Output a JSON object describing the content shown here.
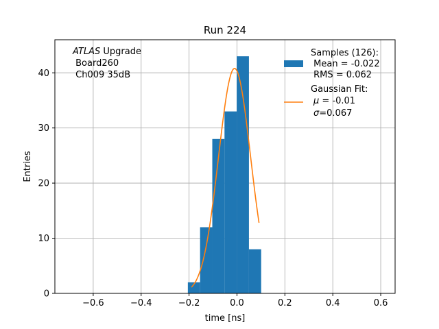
{
  "chart_data": {
    "type": "bar",
    "title": "Run 224",
    "xlabel": "time [ns]",
    "ylabel": "Entries",
    "xlim": [
      -0.76,
      0.66
    ],
    "ylim": [
      0,
      46
    ],
    "x_ticks": [
      -0.6,
      -0.4,
      -0.2,
      0.0,
      0.2,
      0.4,
      0.6
    ],
    "x_tick_labels": [
      "−0.6",
      "−0.4",
      "−0.2",
      "0.0",
      "0.2",
      "0.4",
      "0.6"
    ],
    "y_ticks": [
      0,
      10,
      20,
      30,
      40
    ],
    "y_tick_labels": [
      "0",
      "10",
      "20",
      "30",
      "40"
    ],
    "grid": true,
    "histogram": {
      "bin_edges": [
        -0.205,
        -0.154,
        -0.103,
        -0.052,
        -0.001,
        0.05,
        0.101
      ],
      "counts": [
        2,
        12,
        28,
        33,
        43,
        8
      ],
      "color": "#1f77b4"
    },
    "fit": {
      "type": "gaussian",
      "amplitude": 40.8,
      "mu": -0.01,
      "sigma": 0.067,
      "x_range": [
        -0.19,
        0.092
      ],
      "color": "#ff7f0e"
    },
    "annotation": {
      "italic_part": "ATLAS",
      "line1_rest": " Upgrade",
      "line2": " Board260",
      "line3": " Ch009 35dB"
    },
    "legend": {
      "placement": "top-right",
      "hist_entry": {
        "line1": "Samples (126):",
        "line2": " Mean = -0.022",
        "line3": " RMS = 0.062"
      },
      "fit_entry": {
        "line1": "Gaussian Fit:",
        "line2_symbol": "μ",
        "line2_rest": " = -0.01",
        "line3_symbol": "σ",
        "line3_rest": "=0.067"
      }
    }
  }
}
